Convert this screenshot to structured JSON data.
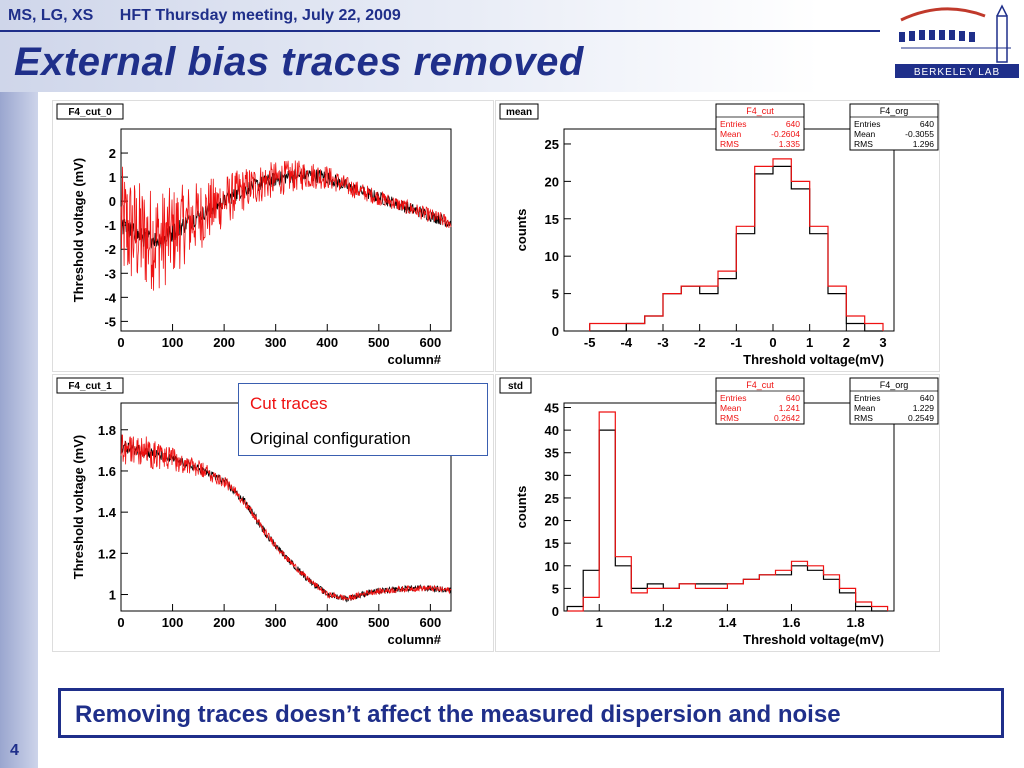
{
  "header": {
    "authors": "MS, LG, XS",
    "meeting": "HFT Thursday meeting, July 22, 2009"
  },
  "slide_title": "External bias traces removed",
  "logo_text": "BERKELEY LAB",
  "page_number": "4",
  "legend": {
    "cut_label": "Cut traces",
    "orig_label": "Original configuration",
    "cut_color": "#ee1111",
    "orig_color": "#000000"
  },
  "conclusion": "Removing traces doesn’t affect the  measured dispersion and noise",
  "chart_data": [
    {
      "type": "line",
      "tag": "F4_cut_0",
      "xlabel": "column#",
      "ylabel": "Threshold voltage (mV)",
      "xlim": [
        0,
        640
      ],
      "ylim": [
        -5.4,
        3.0
      ],
      "xticks": [
        0,
        100,
        200,
        300,
        400,
        500,
        600
      ],
      "yticks": [
        -5,
        -4,
        -3,
        -2,
        -1,
        0,
        1,
        2
      ],
      "x": [
        0,
        40,
        80,
        120,
        160,
        200,
        240,
        280,
        320,
        360,
        400,
        440,
        480,
        520,
        560,
        600,
        640
      ],
      "series": [
        {
          "color": "#ee1111",
          "y": [
            -1.0,
            -1.5,
            -1.6,
            -1.0,
            -0.5,
            0.0,
            0.5,
            0.8,
            1.0,
            1.1,
            1.0,
            0.6,
            0.3,
            0.0,
            -0.3,
            -0.6,
            -0.9
          ],
          "noise": [
            2.5,
            2.3,
            2.1,
            1.7,
            1.4,
            1.1,
            0.9,
            0.8,
            0.7,
            0.6,
            0.5,
            0.4,
            0.35,
            0.3,
            0.3,
            0.3,
            0.3
          ]
        },
        {
          "color": "#000000",
          "y": [
            -1.0,
            -1.5,
            -1.6,
            -1.0,
            -0.5,
            0.0,
            0.5,
            0.8,
            1.0,
            1.1,
            1.0,
            0.6,
            0.3,
            0.0,
            -0.3,
            -0.6,
            -0.9
          ],
          "noise": [
            0.4,
            0.4,
            0.4,
            0.4,
            0.3,
            0.3,
            0.3,
            0.3,
            0.3,
            0.3,
            0.3,
            0.25,
            0.25,
            0.25,
            0.25,
            0.25,
            0.25
          ]
        }
      ]
    },
    {
      "type": "histogram",
      "tag": "mean",
      "xlabel": "Threshold voltage(mV)",
      "ylabel": "counts",
      "xlim": [
        -5.7,
        3.3
      ],
      "ylim": [
        0,
        27
      ],
      "xticks": [
        -5,
        -4,
        -3,
        -2,
        -1,
        0,
        1,
        2,
        3
      ],
      "yticks": [
        0,
        5,
        10,
        15,
        20,
        25
      ],
      "bin_edges": [
        -5.0,
        -4.5,
        -4.0,
        -3.5,
        -3.0,
        -2.5,
        -2.0,
        -1.5,
        -1.0,
        -0.5,
        0.0,
        0.5,
        1.0,
        1.5,
        2.0,
        2.5,
        3.0
      ],
      "series": [
        {
          "name": "F4_cut",
          "color": "#ee1111",
          "counts": [
            1,
            1,
            1,
            2,
            5,
            6,
            6,
            8,
            14,
            22,
            23,
            20,
            14,
            6,
            2,
            1
          ]
        },
        {
          "name": "F4_org",
          "color": "#000000",
          "counts": [
            0,
            0,
            1,
            2,
            5,
            6,
            5,
            7,
            13,
            21,
            22,
            19,
            13,
            5,
            1,
            0
          ]
        }
      ],
      "stats": [
        {
          "title": "F4_cut",
          "color": "#ee1111",
          "rows": [
            [
              "Entries",
              "640"
            ],
            [
              "Mean",
              "-0.2604"
            ],
            [
              "RMS",
              "1.335"
            ]
          ]
        },
        {
          "title": "F4_org",
          "color": "#000000",
          "rows": [
            [
              "Entries",
              "640"
            ],
            [
              "Mean",
              "-0.3055"
            ],
            [
              "RMS",
              "1.296"
            ]
          ]
        }
      ]
    },
    {
      "type": "line",
      "tag": "F4_cut_1",
      "xlabel": "column#",
      "ylabel": "Threshold voltage (mV)",
      "xlim": [
        0,
        640
      ],
      "ylim": [
        0.92,
        1.93
      ],
      "xticks": [
        0,
        100,
        200,
        300,
        400,
        500,
        600
      ],
      "yticks": [
        1,
        1.2,
        1.4,
        1.6,
        1.8
      ],
      "x": [
        0,
        40,
        80,
        120,
        160,
        200,
        240,
        280,
        320,
        360,
        400,
        440,
        480,
        520,
        560,
        600,
        640
      ],
      "series": [
        {
          "color": "#ee1111",
          "y": [
            1.72,
            1.7,
            1.67,
            1.64,
            1.6,
            1.55,
            1.45,
            1.3,
            1.18,
            1.08,
            1.0,
            0.98,
            1.01,
            1.02,
            1.03,
            1.03,
            1.02
          ],
          "noise": [
            0.09,
            0.08,
            0.07,
            0.05,
            0.04,
            0.03,
            0.02,
            0.02,
            0.015,
            0.015,
            0.015,
            0.015,
            0.015,
            0.015,
            0.015,
            0.015,
            0.015
          ]
        },
        {
          "color": "#000000",
          "y": [
            1.72,
            1.7,
            1.67,
            1.64,
            1.6,
            1.55,
            1.45,
            1.3,
            1.18,
            1.08,
            1.0,
            0.98,
            1.01,
            1.02,
            1.03,
            1.03,
            1.02
          ],
          "noise": [
            0.03,
            0.03,
            0.025,
            0.02,
            0.02,
            0.02,
            0.02,
            0.02,
            0.015,
            0.015,
            0.015,
            0.015,
            0.015,
            0.015,
            0.015,
            0.015,
            0.015
          ]
        }
      ]
    },
    {
      "type": "histogram",
      "tag": "std",
      "xlabel": "Threshold voltage(mV)",
      "ylabel": "counts",
      "xlim": [
        0.89,
        1.92
      ],
      "ylim": [
        0,
        46
      ],
      "xticks": [
        1,
        1.2,
        1.4,
        1.6,
        1.8
      ],
      "yticks": [
        0,
        5,
        10,
        15,
        20,
        25,
        30,
        35,
        40,
        45
      ],
      "bin_edges": [
        0.9,
        0.95,
        1.0,
        1.05,
        1.1,
        1.15,
        1.2,
        1.25,
        1.3,
        1.35,
        1.4,
        1.45,
        1.5,
        1.55,
        1.6,
        1.65,
        1.7,
        1.75,
        1.8,
        1.85,
        1.9
      ],
      "series": [
        {
          "name": "F4_cut",
          "color": "#ee1111",
          "counts": [
            0,
            3,
            44,
            12,
            4,
            5,
            5,
            6,
            5,
            5,
            6,
            7,
            8,
            9,
            11,
            10,
            8,
            5,
            2,
            1
          ]
        },
        {
          "name": "F4_org",
          "color": "#000000",
          "counts": [
            1,
            9,
            40,
            10,
            5,
            6,
            5,
            6,
            6,
            6,
            6,
            7,
            8,
            8,
            10,
            9,
            7,
            4,
            1,
            0
          ]
        }
      ],
      "stats": [
        {
          "title": "F4_cut",
          "color": "#ee1111",
          "rows": [
            [
              "Entries",
              "640"
            ],
            [
              "Mean",
              "1.241"
            ],
            [
              "RMS",
              "0.2642"
            ]
          ]
        },
        {
          "title": "F4_org",
          "color": "#000000",
          "rows": [
            [
              "Entries",
              "640"
            ],
            [
              "Mean",
              "1.229"
            ],
            [
              "RMS",
              "0.2549"
            ]
          ]
        }
      ]
    }
  ]
}
